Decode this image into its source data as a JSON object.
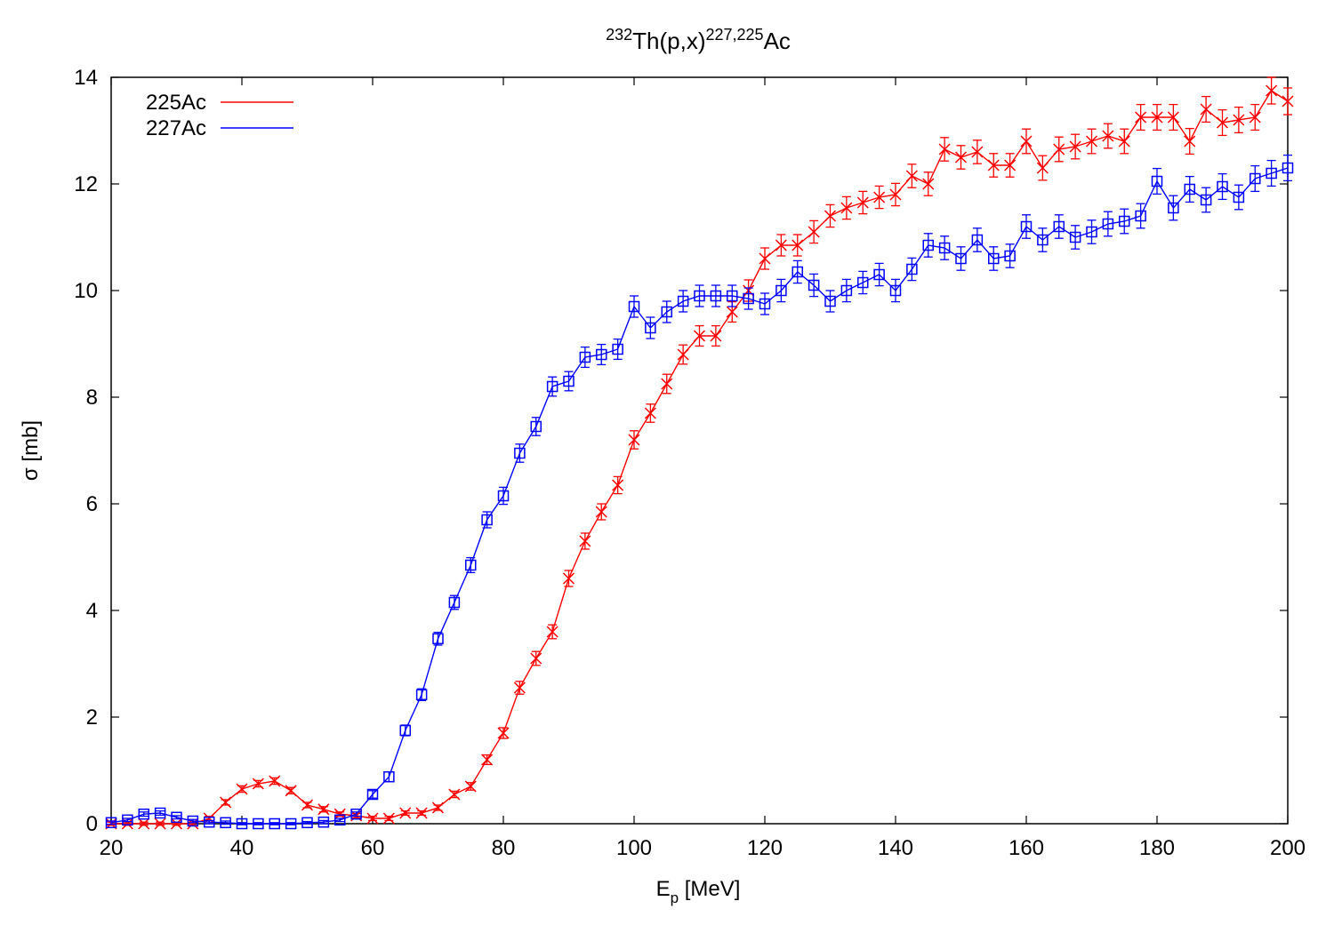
{
  "chart_data": {
    "type": "line",
    "title": {
      "sup1": "232",
      "base1": "Th(p,x)",
      "sup2": "227,225",
      "base2": "Ac"
    },
    "xlabel": {
      "base": "E",
      "sub": "p",
      "unit": " [MeV]"
    },
    "ylabel": "σ [mb]",
    "xlim": [
      20,
      200
    ],
    "ylim": [
      0,
      14
    ],
    "xticks": [
      20,
      40,
      60,
      80,
      100,
      120,
      140,
      160,
      180,
      200
    ],
    "yticks": [
      0,
      2,
      4,
      6,
      8,
      10,
      12,
      14
    ],
    "legend_position": "top-left",
    "error_bars": true,
    "series": [
      {
        "name": "225Ac",
        "color": "#ff0000",
        "marker": "x",
        "x": [
          20,
          22.5,
          25,
          27.5,
          30,
          32.5,
          35,
          37.5,
          40,
          42.5,
          45,
          47.5,
          50,
          52.5,
          55,
          57.5,
          60,
          62.5,
          65,
          67.5,
          70,
          72.5,
          75,
          77.5,
          80,
          82.5,
          85,
          87.5,
          90,
          92.5,
          95,
          97.5,
          100,
          102.5,
          105,
          107.5,
          110,
          112.5,
          115,
          117.5,
          120,
          122.5,
          125,
          127.5,
          130,
          132.5,
          135,
          137.5,
          140,
          142.5,
          145,
          147.5,
          150,
          152.5,
          155,
          157.5,
          160,
          162.5,
          165,
          167.5,
          170,
          172.5,
          175,
          177.5,
          180,
          182.5,
          185,
          187.5,
          190,
          192.5,
          195,
          197.5,
          200
        ],
        "y": [
          0,
          0,
          0,
          0,
          0,
          0,
          0.1,
          0.4,
          0.65,
          0.75,
          0.8,
          0.62,
          0.35,
          0.27,
          0.18,
          0.15,
          0.1,
          0.1,
          0.2,
          0.2,
          0.3,
          0.55,
          0.7,
          1.2,
          1.7,
          2.55,
          3.1,
          3.6,
          4.6,
          5.3,
          5.85,
          6.35,
          7.2,
          7.7,
          8.25,
          8.8,
          9.15,
          9.15,
          9.6,
          10.0,
          10.6,
          10.85,
          10.85,
          11.1,
          11.4,
          11.55,
          11.65,
          11.75,
          11.8,
          12.15,
          12.0,
          12.65,
          12.5,
          12.6,
          12.35,
          12.35,
          12.8,
          12.3,
          12.65,
          12.7,
          12.8,
          12.9,
          12.8,
          13.25,
          13.25,
          13.25,
          12.8,
          13.4,
          13.15,
          13.2,
          13.25,
          13.75,
          13.55
        ],
        "err": [
          0.03,
          0.03,
          0.03,
          0.03,
          0.03,
          0.03,
          0.04,
          0.05,
          0.06,
          0.06,
          0.06,
          0.06,
          0.05,
          0.05,
          0.04,
          0.04,
          0.04,
          0.04,
          0.04,
          0.04,
          0.05,
          0.06,
          0.07,
          0.09,
          0.1,
          0.12,
          0.13,
          0.13,
          0.15,
          0.15,
          0.15,
          0.16,
          0.17,
          0.17,
          0.18,
          0.18,
          0.19,
          0.19,
          0.19,
          0.2,
          0.2,
          0.2,
          0.2,
          0.21,
          0.21,
          0.21,
          0.21,
          0.21,
          0.21,
          0.22,
          0.22,
          0.22,
          0.22,
          0.22,
          0.22,
          0.22,
          0.23,
          0.23,
          0.23,
          0.23,
          0.23,
          0.23,
          0.23,
          0.24,
          0.24,
          0.24,
          0.24,
          0.24,
          0.24,
          0.24,
          0.24,
          0.25,
          0.25
        ]
      },
      {
        "name": "227Ac",
        "color": "#0000ff",
        "marker": "square",
        "x": [
          20,
          22.5,
          25,
          27.5,
          30,
          32.5,
          35,
          37.5,
          40,
          42.5,
          45,
          47.5,
          50,
          52.5,
          55,
          57.5,
          60,
          62.5,
          65,
          67.5,
          70,
          72.5,
          75,
          77.5,
          80,
          82.5,
          85,
          87.5,
          90,
          92.5,
          95,
          97.5,
          100,
          102.5,
          105,
          107.5,
          110,
          112.5,
          115,
          117.5,
          120,
          122.5,
          125,
          127.5,
          130,
          132.5,
          135,
          137.5,
          140,
          142.5,
          145,
          147.5,
          150,
          152.5,
          155,
          157.5,
          160,
          162.5,
          165,
          167.5,
          170,
          172.5,
          175,
          177.5,
          180,
          182.5,
          185,
          187.5,
          190,
          192.5,
          195,
          197.5,
          200
        ],
        "y": [
          0.02,
          0.07,
          0.18,
          0.2,
          0.12,
          0.05,
          0.03,
          0.02,
          0.0,
          0.0,
          0.0,
          0.0,
          0.02,
          0.03,
          0.07,
          0.18,
          0.55,
          0.88,
          1.75,
          2.42,
          3.47,
          4.15,
          4.85,
          5.7,
          6.15,
          6.95,
          7.45,
          8.2,
          8.3,
          8.75,
          8.8,
          8.9,
          9.7,
          9.3,
          9.6,
          9.8,
          9.9,
          9.9,
          9.9,
          9.85,
          9.75,
          10.0,
          10.35,
          10.1,
          9.8,
          10.0,
          10.15,
          10.3,
          10.0,
          10.4,
          10.85,
          10.8,
          10.6,
          10.95,
          10.6,
          10.65,
          11.2,
          10.95,
          11.2,
          11.0,
          11.1,
          11.25,
          11.3,
          11.4,
          12.05,
          11.55,
          11.9,
          11.7,
          11.95,
          11.75,
          12.1,
          12.2,
          12.3
        ],
        "err": [
          0.03,
          0.03,
          0.04,
          0.04,
          0.03,
          0.03,
          0.03,
          0.03,
          0.02,
          0.02,
          0.02,
          0.02,
          0.02,
          0.03,
          0.03,
          0.04,
          0.07,
          0.09,
          0.1,
          0.11,
          0.12,
          0.13,
          0.14,
          0.15,
          0.16,
          0.17,
          0.17,
          0.18,
          0.18,
          0.19,
          0.19,
          0.19,
          0.2,
          0.2,
          0.2,
          0.2,
          0.2,
          0.2,
          0.2,
          0.2,
          0.2,
          0.21,
          0.21,
          0.21,
          0.2,
          0.21,
          0.21,
          0.21,
          0.21,
          0.21,
          0.22,
          0.22,
          0.22,
          0.22,
          0.22,
          0.22,
          0.22,
          0.22,
          0.22,
          0.22,
          0.22,
          0.23,
          0.23,
          0.23,
          0.24,
          0.23,
          0.24,
          0.23,
          0.24,
          0.23,
          0.24,
          0.24,
          0.24
        ]
      }
    ]
  }
}
